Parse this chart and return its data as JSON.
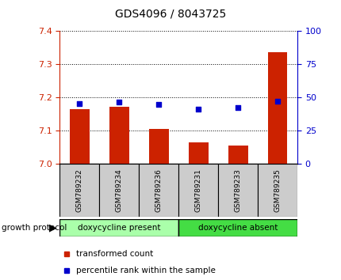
{
  "title": "GDS4096 / 8043725",
  "samples": [
    "GSM789232",
    "GSM789234",
    "GSM789236",
    "GSM789231",
    "GSM789233",
    "GSM789235"
  ],
  "red_values": [
    7.165,
    7.172,
    7.105,
    7.065,
    7.055,
    7.335
  ],
  "blue_values": [
    45.0,
    46.5,
    44.5,
    41.0,
    42.5,
    47.0
  ],
  "ylim_left": [
    7.0,
    7.4
  ],
  "ylim_right": [
    0,
    100
  ],
  "yticks_left": [
    7.0,
    7.1,
    7.2,
    7.3,
    7.4
  ],
  "yticks_right": [
    0,
    25,
    50,
    75,
    100
  ],
  "bar_color": "#cc2200",
  "dot_color": "#0000cc",
  "groups": [
    {
      "label": "doxycycline present",
      "indices": [
        0,
        1,
        2
      ],
      "color": "#aaffaa"
    },
    {
      "label": "doxycycline absent",
      "indices": [
        3,
        4,
        5
      ],
      "color": "#44dd44"
    }
  ],
  "group_label": "growth protocol",
  "left_axis_color": "#cc2200",
  "right_axis_color": "#0000cc",
  "title_fontsize": 10,
  "tick_fontsize": 8,
  "bar_width": 0.5,
  "sample_bg_color": "#cccccc",
  "legend_red_label": "transformed count",
  "legend_blue_label": "percentile rank within the sample"
}
